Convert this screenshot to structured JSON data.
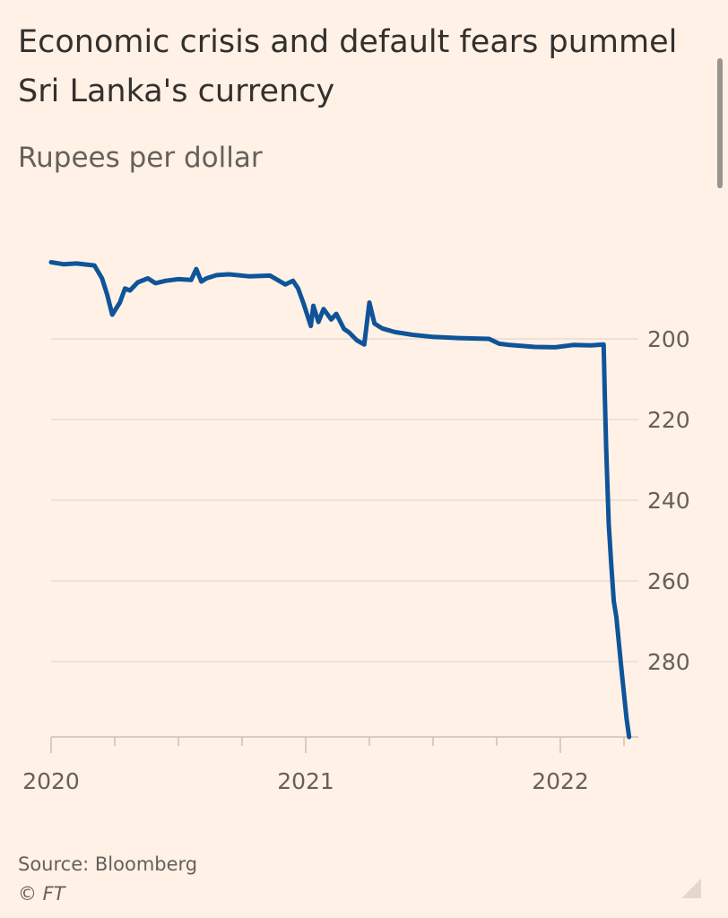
{
  "header": {
    "title": "Economic crisis and default fears pummel Sri Lanka's currency",
    "subtitle": "Rupees per dollar"
  },
  "footer": {
    "source": "Source: Bloomberg",
    "copyright": "© FT"
  },
  "colors": {
    "background": "#fff1e5",
    "line": "#0f5499",
    "grid": "#e8dcd2",
    "text": "#66605c"
  },
  "chart_data": {
    "type": "line",
    "title": "Economic crisis and default fears pummel Sri Lanka's currency",
    "ylabel": "Rupees per dollar",
    "xlabel": "",
    "y_inverted": true,
    "ylim": [
      181,
      299
    ],
    "xlim": [
      2020.0,
      2022.3
    ],
    "y_ticks": [
      200,
      220,
      240,
      260,
      280
    ],
    "x_ticks": [
      {
        "value": 2020.0,
        "label": "2020",
        "major": true
      },
      {
        "value": 2020.25,
        "label": "",
        "major": false
      },
      {
        "value": 2020.5,
        "label": "",
        "major": false
      },
      {
        "value": 2020.75,
        "label": "",
        "major": false
      },
      {
        "value": 2021.0,
        "label": "2021",
        "major": true
      },
      {
        "value": 2021.25,
        "label": "",
        "major": false
      },
      {
        "value": 2021.5,
        "label": "",
        "major": false
      },
      {
        "value": 2021.75,
        "label": "",
        "major": false
      },
      {
        "value": 2022.0,
        "label": "2022",
        "major": true
      },
      {
        "value": 2022.25,
        "label": "",
        "major": false
      }
    ],
    "grid": true,
    "series": [
      {
        "name": "LKR per USD",
        "x": [
          2020.0,
          2020.05,
          2020.1,
          2020.17,
          2020.2,
          2020.22,
          2020.24,
          2020.25,
          2020.27,
          2020.29,
          2020.31,
          2020.34,
          2020.38,
          2020.41,
          2020.45,
          2020.5,
          2020.55,
          2020.57,
          2020.59,
          2020.61,
          2020.65,
          2020.7,
          2020.78,
          2020.86,
          2020.92,
          2020.95,
          2020.97,
          2020.99,
          2021.02,
          2021.03,
          2021.05,
          2021.07,
          2021.1,
          2021.12,
          2021.15,
          2021.17,
          2021.2,
          2021.23,
          2021.25,
          2021.27,
          2021.3,
          2021.35,
          2021.42,
          2021.5,
          2021.6,
          2021.72,
          2021.76,
          2021.8,
          2021.9,
          2021.98,
          2022.05,
          2022.12,
          2022.17,
          2022.175,
          2022.18,
          2022.19,
          2022.2,
          2022.21,
          2022.22,
          2022.24,
          2022.26,
          2022.27
        ],
        "values": [
          181,
          181.5,
          181.3,
          181.8,
          185,
          189,
          194,
          193,
          191,
          187.5,
          188,
          186,
          185,
          186.2,
          185.6,
          185.2,
          185.4,
          182.7,
          185.8,
          185,
          184.2,
          184,
          184.5,
          184.3,
          186.5,
          185.6,
          187.5,
          191,
          196.8,
          191.8,
          195.8,
          192.6,
          195.2,
          193.8,
          197.5,
          198.4,
          200.3,
          201.4,
          191,
          196.2,
          197.4,
          198.3,
          199,
          199.5,
          199.8,
          200,
          201.2,
          201.5,
          202,
          202.1,
          201.5,
          201.6,
          201.4,
          215,
          227,
          246,
          256,
          265,
          269,
          282,
          294,
          298.7
        ]
      }
    ]
  }
}
